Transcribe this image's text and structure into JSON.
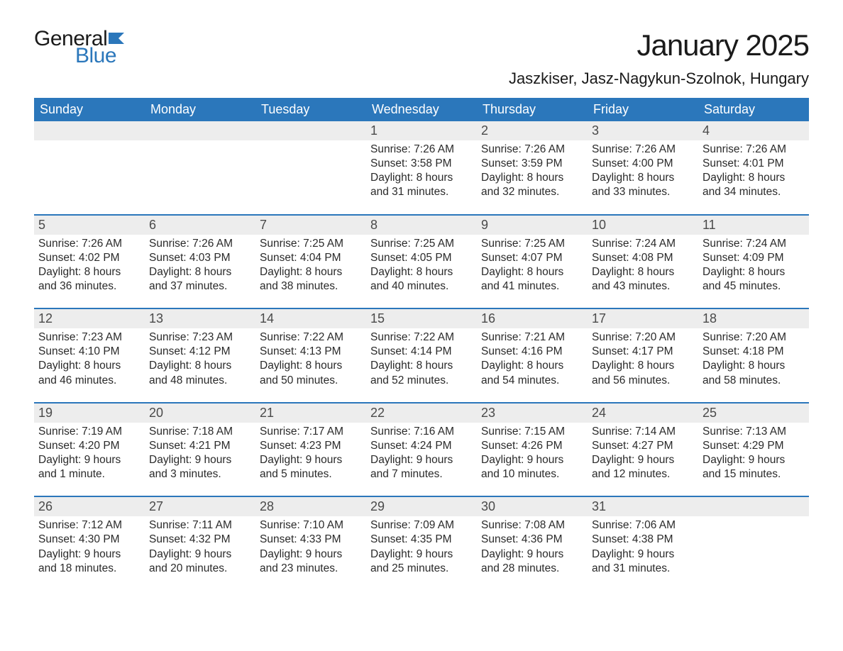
{
  "logo": {
    "general": "General",
    "blue": "Blue",
    "flag_color": "#2b77bb"
  },
  "title": "January 2025",
  "location": "Jaszkiser, Jasz-Nagykun-Szolnok, Hungary",
  "colors": {
    "header_bg": "#2b77bb",
    "header_text": "#ffffff",
    "daynum_bg": "#ededed",
    "daynum_text": "#4a4a4a",
    "body_text": "#2a2a2a",
    "week_border": "#2b77bb"
  },
  "typography": {
    "title_fontsize": 42,
    "location_fontsize": 22,
    "dow_fontsize": 18,
    "daynum_fontsize": 18,
    "body_fontsize": 15.5
  },
  "days_of_week": [
    "Sunday",
    "Monday",
    "Tuesday",
    "Wednesday",
    "Thursday",
    "Friday",
    "Saturday"
  ],
  "weeks": [
    [
      {
        "empty": true
      },
      {
        "empty": true
      },
      {
        "empty": true
      },
      {
        "day": "1",
        "sunrise": "Sunrise: 7:26 AM",
        "sunset": "Sunset: 3:58 PM",
        "daylight1": "Daylight: 8 hours",
        "daylight2": "and 31 minutes."
      },
      {
        "day": "2",
        "sunrise": "Sunrise: 7:26 AM",
        "sunset": "Sunset: 3:59 PM",
        "daylight1": "Daylight: 8 hours",
        "daylight2": "and 32 minutes."
      },
      {
        "day": "3",
        "sunrise": "Sunrise: 7:26 AM",
        "sunset": "Sunset: 4:00 PM",
        "daylight1": "Daylight: 8 hours",
        "daylight2": "and 33 minutes."
      },
      {
        "day": "4",
        "sunrise": "Sunrise: 7:26 AM",
        "sunset": "Sunset: 4:01 PM",
        "daylight1": "Daylight: 8 hours",
        "daylight2": "and 34 minutes."
      }
    ],
    [
      {
        "day": "5",
        "sunrise": "Sunrise: 7:26 AM",
        "sunset": "Sunset: 4:02 PM",
        "daylight1": "Daylight: 8 hours",
        "daylight2": "and 36 minutes."
      },
      {
        "day": "6",
        "sunrise": "Sunrise: 7:26 AM",
        "sunset": "Sunset: 4:03 PM",
        "daylight1": "Daylight: 8 hours",
        "daylight2": "and 37 minutes."
      },
      {
        "day": "7",
        "sunrise": "Sunrise: 7:25 AM",
        "sunset": "Sunset: 4:04 PM",
        "daylight1": "Daylight: 8 hours",
        "daylight2": "and 38 minutes."
      },
      {
        "day": "8",
        "sunrise": "Sunrise: 7:25 AM",
        "sunset": "Sunset: 4:05 PM",
        "daylight1": "Daylight: 8 hours",
        "daylight2": "and 40 minutes."
      },
      {
        "day": "9",
        "sunrise": "Sunrise: 7:25 AM",
        "sunset": "Sunset: 4:07 PM",
        "daylight1": "Daylight: 8 hours",
        "daylight2": "and 41 minutes."
      },
      {
        "day": "10",
        "sunrise": "Sunrise: 7:24 AM",
        "sunset": "Sunset: 4:08 PM",
        "daylight1": "Daylight: 8 hours",
        "daylight2": "and 43 minutes."
      },
      {
        "day": "11",
        "sunrise": "Sunrise: 7:24 AM",
        "sunset": "Sunset: 4:09 PM",
        "daylight1": "Daylight: 8 hours",
        "daylight2": "and 45 minutes."
      }
    ],
    [
      {
        "day": "12",
        "sunrise": "Sunrise: 7:23 AM",
        "sunset": "Sunset: 4:10 PM",
        "daylight1": "Daylight: 8 hours",
        "daylight2": "and 46 minutes."
      },
      {
        "day": "13",
        "sunrise": "Sunrise: 7:23 AM",
        "sunset": "Sunset: 4:12 PM",
        "daylight1": "Daylight: 8 hours",
        "daylight2": "and 48 minutes."
      },
      {
        "day": "14",
        "sunrise": "Sunrise: 7:22 AM",
        "sunset": "Sunset: 4:13 PM",
        "daylight1": "Daylight: 8 hours",
        "daylight2": "and 50 minutes."
      },
      {
        "day": "15",
        "sunrise": "Sunrise: 7:22 AM",
        "sunset": "Sunset: 4:14 PM",
        "daylight1": "Daylight: 8 hours",
        "daylight2": "and 52 minutes."
      },
      {
        "day": "16",
        "sunrise": "Sunrise: 7:21 AM",
        "sunset": "Sunset: 4:16 PM",
        "daylight1": "Daylight: 8 hours",
        "daylight2": "and 54 minutes."
      },
      {
        "day": "17",
        "sunrise": "Sunrise: 7:20 AM",
        "sunset": "Sunset: 4:17 PM",
        "daylight1": "Daylight: 8 hours",
        "daylight2": "and 56 minutes."
      },
      {
        "day": "18",
        "sunrise": "Sunrise: 7:20 AM",
        "sunset": "Sunset: 4:18 PM",
        "daylight1": "Daylight: 8 hours",
        "daylight2": "and 58 minutes."
      }
    ],
    [
      {
        "day": "19",
        "sunrise": "Sunrise: 7:19 AM",
        "sunset": "Sunset: 4:20 PM",
        "daylight1": "Daylight: 9 hours",
        "daylight2": "and 1 minute."
      },
      {
        "day": "20",
        "sunrise": "Sunrise: 7:18 AM",
        "sunset": "Sunset: 4:21 PM",
        "daylight1": "Daylight: 9 hours",
        "daylight2": "and 3 minutes."
      },
      {
        "day": "21",
        "sunrise": "Sunrise: 7:17 AM",
        "sunset": "Sunset: 4:23 PM",
        "daylight1": "Daylight: 9 hours",
        "daylight2": "and 5 minutes."
      },
      {
        "day": "22",
        "sunrise": "Sunrise: 7:16 AM",
        "sunset": "Sunset: 4:24 PM",
        "daylight1": "Daylight: 9 hours",
        "daylight2": "and 7 minutes."
      },
      {
        "day": "23",
        "sunrise": "Sunrise: 7:15 AM",
        "sunset": "Sunset: 4:26 PM",
        "daylight1": "Daylight: 9 hours",
        "daylight2": "and 10 minutes."
      },
      {
        "day": "24",
        "sunrise": "Sunrise: 7:14 AM",
        "sunset": "Sunset: 4:27 PM",
        "daylight1": "Daylight: 9 hours",
        "daylight2": "and 12 minutes."
      },
      {
        "day": "25",
        "sunrise": "Sunrise: 7:13 AM",
        "sunset": "Sunset: 4:29 PM",
        "daylight1": "Daylight: 9 hours",
        "daylight2": "and 15 minutes."
      }
    ],
    [
      {
        "day": "26",
        "sunrise": "Sunrise: 7:12 AM",
        "sunset": "Sunset: 4:30 PM",
        "daylight1": "Daylight: 9 hours",
        "daylight2": "and 18 minutes."
      },
      {
        "day": "27",
        "sunrise": "Sunrise: 7:11 AM",
        "sunset": "Sunset: 4:32 PM",
        "daylight1": "Daylight: 9 hours",
        "daylight2": "and 20 minutes."
      },
      {
        "day": "28",
        "sunrise": "Sunrise: 7:10 AM",
        "sunset": "Sunset: 4:33 PM",
        "daylight1": "Daylight: 9 hours",
        "daylight2": "and 23 minutes."
      },
      {
        "day": "29",
        "sunrise": "Sunrise: 7:09 AM",
        "sunset": "Sunset: 4:35 PM",
        "daylight1": "Daylight: 9 hours",
        "daylight2": "and 25 minutes."
      },
      {
        "day": "30",
        "sunrise": "Sunrise: 7:08 AM",
        "sunset": "Sunset: 4:36 PM",
        "daylight1": "Daylight: 9 hours",
        "daylight2": "and 28 minutes."
      },
      {
        "day": "31",
        "sunrise": "Sunrise: 7:06 AM",
        "sunset": "Sunset: 4:38 PM",
        "daylight1": "Daylight: 9 hours",
        "daylight2": "and 31 minutes."
      },
      {
        "empty": true
      }
    ]
  ]
}
